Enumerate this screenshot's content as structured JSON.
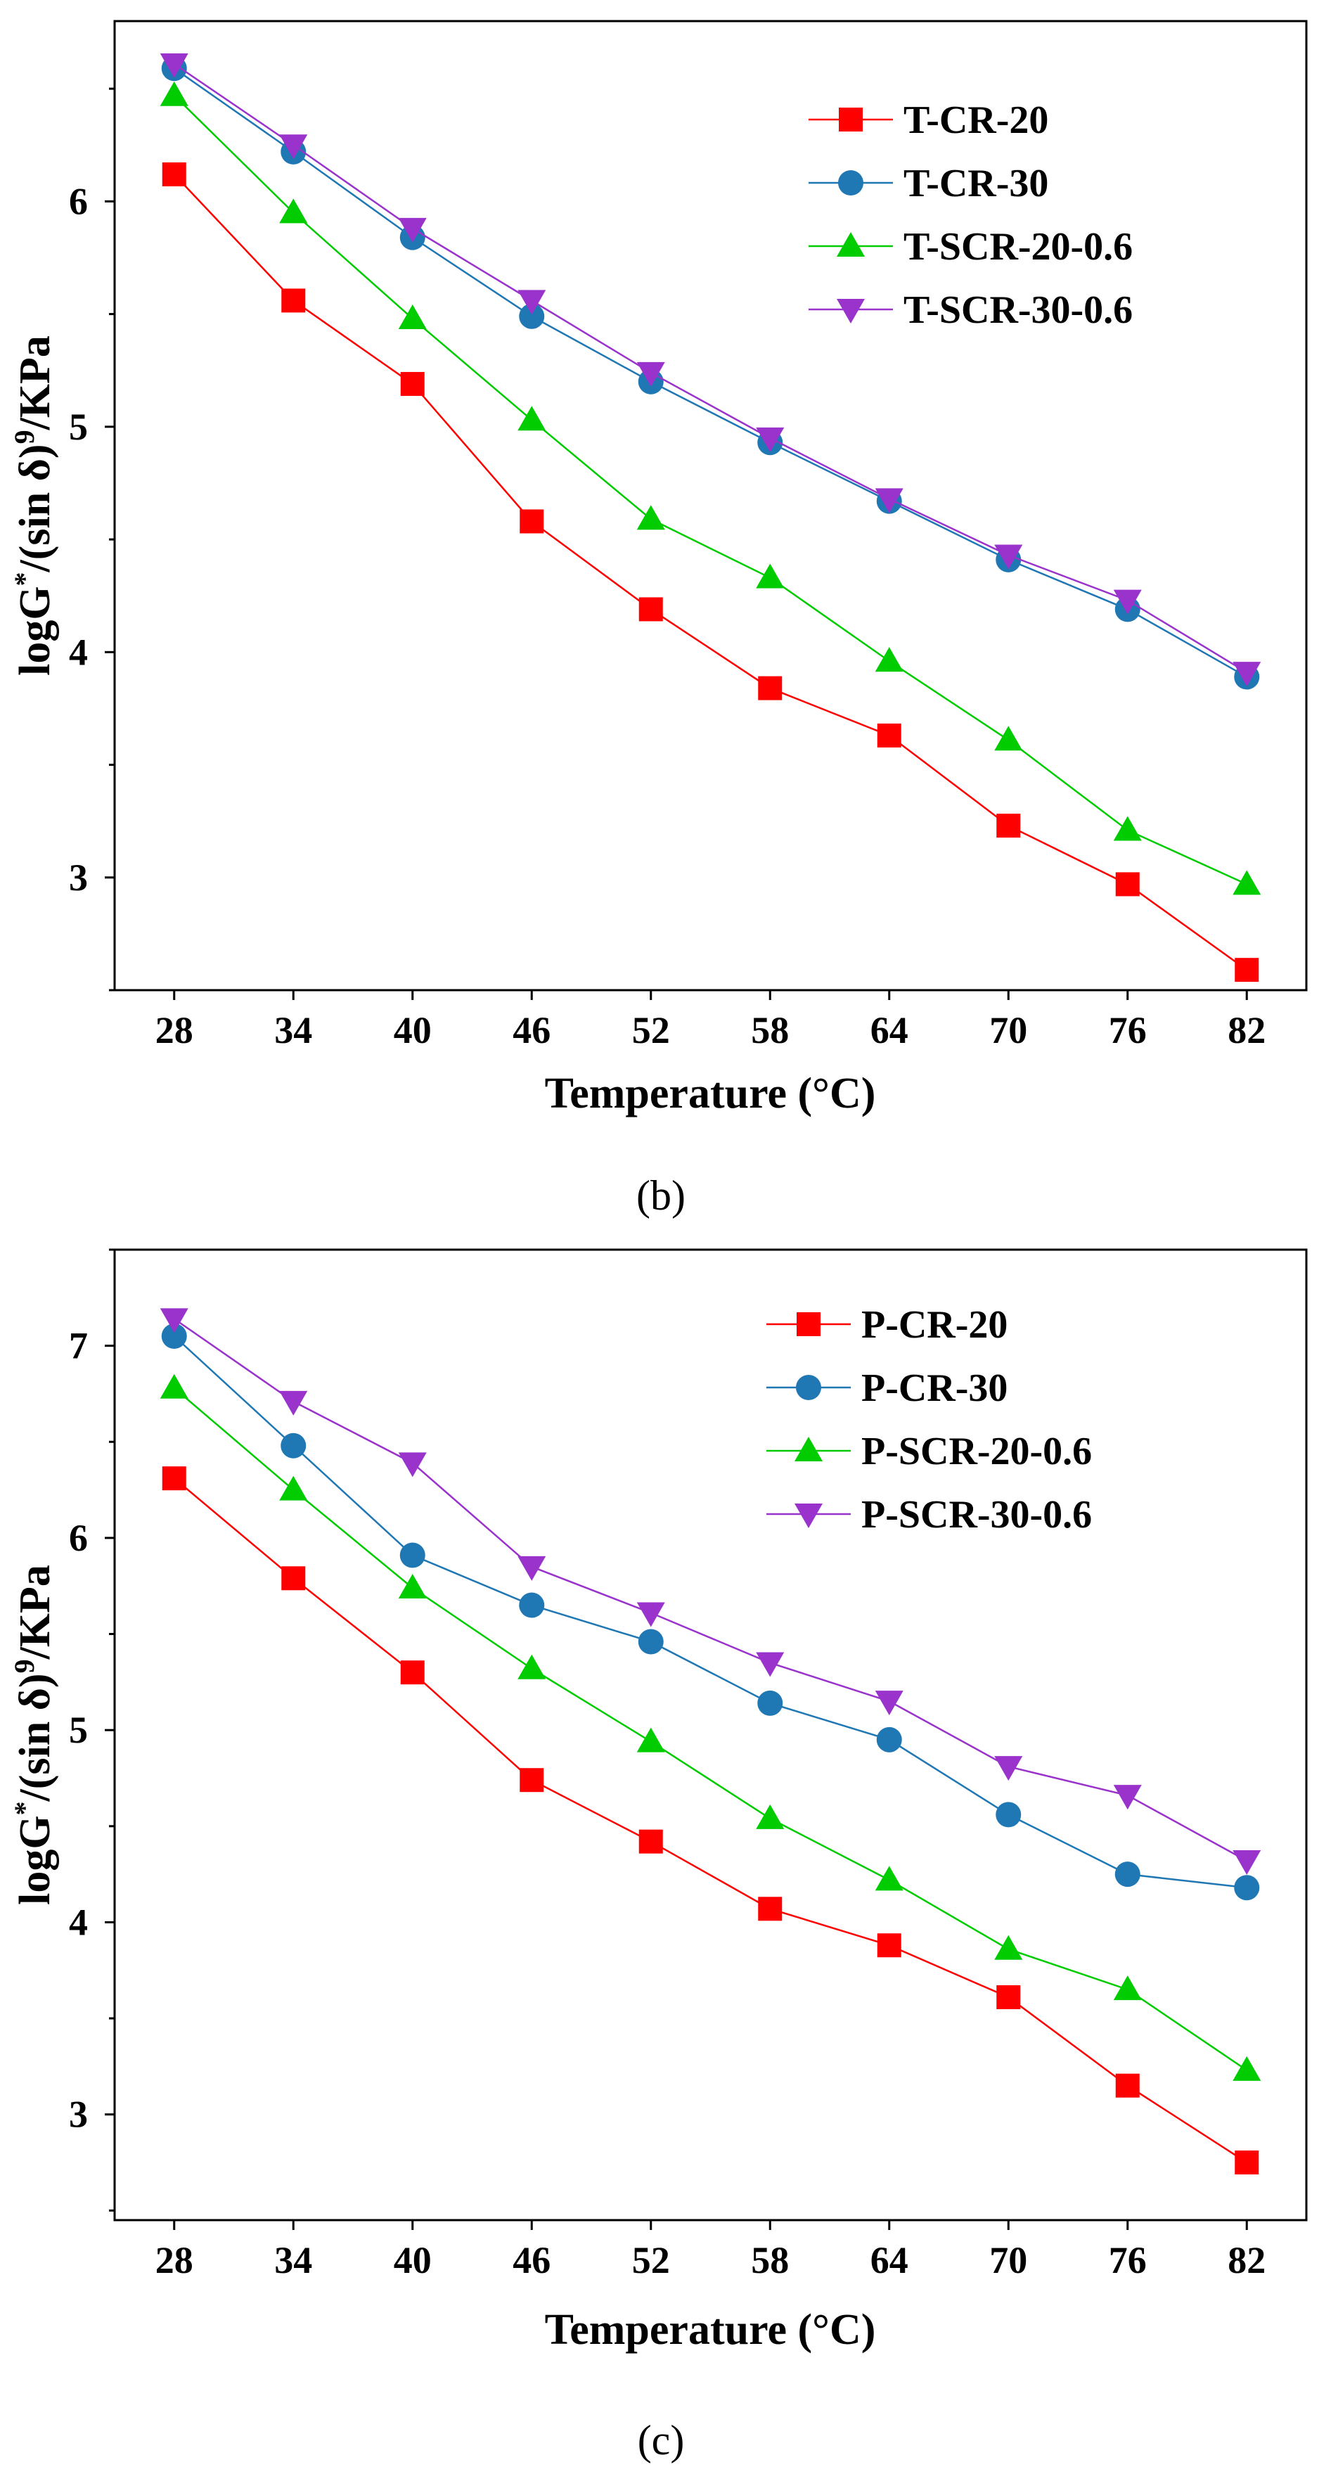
{
  "chart_data": [
    {
      "type": "line",
      "panel_label": "(b)",
      "xlabel": "Temperature (°C)",
      "ylabel": "logG*/(sin δ)9/KPa",
      "ylabel_parts": {
        "base": "logG",
        "sup1": "*",
        "mid": "/(sin δ)",
        "sup2": "9",
        "tail": "/KPa"
      },
      "x": [
        28,
        34,
        40,
        46,
        52,
        58,
        64,
        70,
        76,
        82
      ],
      "xticks": [
        "28",
        "34",
        "40",
        "46",
        "52",
        "58",
        "64",
        "70",
        "76",
        "82"
      ],
      "yticks": [
        "3",
        "4",
        "5",
        "6"
      ],
      "ylim": [
        2.5,
        6.8
      ],
      "grid": false,
      "legend_position": "top-right",
      "series": [
        {
          "name": "T-CR-20",
          "color": "#ff0000",
          "marker": "square",
          "values": [
            6.12,
            5.56,
            5.19,
            4.58,
            4.19,
            3.84,
            3.63,
            3.23,
            2.97,
            2.59
          ]
        },
        {
          "name": "T-CR-30",
          "color": "#1f77b4",
          "marker": "circle",
          "values": [
            6.59,
            6.22,
            5.84,
            5.49,
            5.2,
            4.93,
            4.67,
            4.41,
            4.19,
            3.89
          ]
        },
        {
          "name": "T-SCR-20-0.6",
          "color": "#00cc00",
          "marker": "triangle-up",
          "values": [
            6.47,
            5.95,
            5.48,
            5.03,
            4.59,
            4.33,
            3.96,
            3.61,
            3.21,
            2.97
          ]
        },
        {
          "name": "T-SCR-30-0.6",
          "color": "#9933cc",
          "marker": "triangle-down",
          "values": [
            6.61,
            6.25,
            5.88,
            5.56,
            5.24,
            4.95,
            4.68,
            4.43,
            4.23,
            3.91
          ]
        }
      ]
    },
    {
      "type": "line",
      "panel_label": "(c)",
      "xlabel": "Temperature (°C)",
      "ylabel": "logG*/(sin δ)9/KPa",
      "ylabel_parts": {
        "base": "logG",
        "sup1": "*",
        "mid": "/(sin δ)",
        "sup2": "9",
        "tail": "/KPa"
      },
      "x": [
        28,
        34,
        40,
        46,
        52,
        58,
        64,
        70,
        76,
        82
      ],
      "xticks": [
        "28",
        "34",
        "40",
        "46",
        "52",
        "58",
        "64",
        "70",
        "76",
        "82"
      ],
      "yticks": [
        "3",
        "4",
        "5",
        "6",
        "7"
      ],
      "ylim": [
        2.45,
        7.5
      ],
      "grid": false,
      "legend_position": "top-right",
      "series": [
        {
          "name": "P-CR-20",
          "color": "#ff0000",
          "marker": "square",
          "values": [
            6.31,
            5.79,
            5.3,
            4.74,
            4.42,
            4.07,
            3.88,
            3.61,
            3.15,
            2.75
          ]
        },
        {
          "name": "P-CR-30",
          "color": "#1f77b4",
          "marker": "circle",
          "values": [
            7.05,
            6.48,
            5.91,
            5.65,
            5.46,
            5.14,
            4.95,
            4.56,
            4.25,
            4.18
          ]
        },
        {
          "name": "P-SCR-20-0.6",
          "color": "#00cc00",
          "marker": "triangle-up",
          "values": [
            6.78,
            6.25,
            5.74,
            5.32,
            4.94,
            4.54,
            4.22,
            3.86,
            3.65,
            3.23
          ]
        },
        {
          "name": "P-SCR-30-0.6",
          "color": "#9933cc",
          "marker": "triangle-down",
          "values": [
            7.14,
            6.71,
            6.39,
            5.85,
            5.61,
            5.35,
            5.15,
            4.81,
            4.66,
            4.32
          ]
        }
      ]
    }
  ]
}
